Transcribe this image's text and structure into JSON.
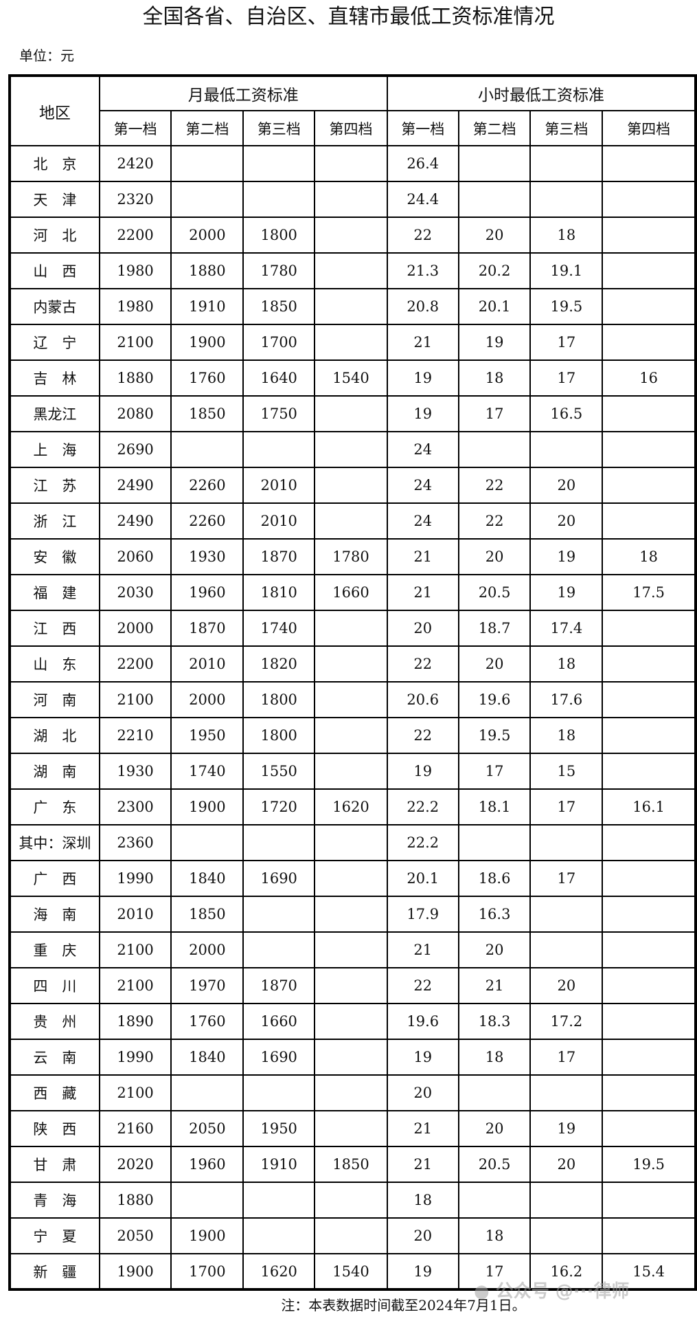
{
  "title": "全国各省、自治区、直辖市最低工资标准情况",
  "unit": "单位：元",
  "header": {
    "region": "地区",
    "monthly": "月最低工资标准",
    "hourly": "小时最低工资标准",
    "tiers": [
      "第一档",
      "第二档",
      "第三档",
      "第四档"
    ]
  },
  "rows": [
    {
      "region": "北　京",
      "monthly": [
        "2420",
        "",
        "",
        ""
      ],
      "hourly": [
        "26.4",
        "",
        "",
        ""
      ]
    },
    {
      "region": "天　津",
      "monthly": [
        "2320",
        "",
        "",
        ""
      ],
      "hourly": [
        "24.4",
        "",
        "",
        ""
      ]
    },
    {
      "region": "河　北",
      "monthly": [
        "2200",
        "2000",
        "1800",
        ""
      ],
      "hourly": [
        "22",
        "20",
        "18",
        ""
      ]
    },
    {
      "region": "山　西",
      "monthly": [
        "1980",
        "1880",
        "1780",
        ""
      ],
      "hourly": [
        "21.3",
        "20.2",
        "19.1",
        ""
      ]
    },
    {
      "region": "内蒙古",
      "monthly": [
        "1980",
        "1910",
        "1850",
        ""
      ],
      "hourly": [
        "20.8",
        "20.1",
        "19.5",
        ""
      ]
    },
    {
      "region": "辽　宁",
      "monthly": [
        "2100",
        "1900",
        "1700",
        ""
      ],
      "hourly": [
        "21",
        "19",
        "17",
        ""
      ]
    },
    {
      "region": "吉　林",
      "monthly": [
        "1880",
        "1760",
        "1640",
        "1540"
      ],
      "hourly": [
        "19",
        "18",
        "17",
        "16"
      ]
    },
    {
      "region": "黑龙江",
      "monthly": [
        "2080",
        "1850",
        "1750",
        ""
      ],
      "hourly": [
        "19",
        "17",
        "16.5",
        ""
      ]
    },
    {
      "region": "上　海",
      "monthly": [
        "2690",
        "",
        "",
        ""
      ],
      "hourly": [
        "24",
        "",
        "",
        ""
      ]
    },
    {
      "region": "江　苏",
      "monthly": [
        "2490",
        "2260",
        "2010",
        ""
      ],
      "hourly": [
        "24",
        "22",
        "20",
        ""
      ]
    },
    {
      "region": "浙　江",
      "monthly": [
        "2490",
        "2260",
        "2010",
        ""
      ],
      "hourly": [
        "24",
        "22",
        "20",
        ""
      ]
    },
    {
      "region": "安　徽",
      "monthly": [
        "2060",
        "1930",
        "1870",
        "1780"
      ],
      "hourly": [
        "21",
        "20",
        "19",
        "18"
      ]
    },
    {
      "region": "福　建",
      "monthly": [
        "2030",
        "1960",
        "1810",
        "1660"
      ],
      "hourly": [
        "21",
        "20.5",
        "19",
        "17.5"
      ]
    },
    {
      "region": "江　西",
      "monthly": [
        "2000",
        "1870",
        "1740",
        ""
      ],
      "hourly": [
        "20",
        "18.7",
        "17.4",
        ""
      ]
    },
    {
      "region": "山　东",
      "monthly": [
        "2200",
        "2010",
        "1820",
        ""
      ],
      "hourly": [
        "22",
        "20",
        "18",
        ""
      ]
    },
    {
      "region": "河　南",
      "monthly": [
        "2100",
        "2000",
        "1800",
        ""
      ],
      "hourly": [
        "20.6",
        "19.6",
        "17.6",
        ""
      ]
    },
    {
      "region": "湖　北",
      "monthly": [
        "2210",
        "1950",
        "1800",
        ""
      ],
      "hourly": [
        "22",
        "19.5",
        "18",
        ""
      ]
    },
    {
      "region": "湖　南",
      "monthly": [
        "1930",
        "1740",
        "1550",
        ""
      ],
      "hourly": [
        "19",
        "17",
        "15",
        ""
      ]
    },
    {
      "region": "广　东",
      "monthly": [
        "2300",
        "1900",
        "1720",
        "1620"
      ],
      "hourly": [
        "22.2",
        "18.1",
        "17",
        "16.1"
      ]
    },
    {
      "region": "其中：深圳",
      "monthly": [
        "2360",
        "",
        "",
        ""
      ],
      "hourly": [
        "22.2",
        "",
        "",
        ""
      ]
    },
    {
      "region": "广　西",
      "monthly": [
        "1990",
        "1840",
        "1690",
        ""
      ],
      "hourly": [
        "20.1",
        "18.6",
        "17",
        ""
      ]
    },
    {
      "region": "海　南",
      "monthly": [
        "2010",
        "1850",
        "",
        ""
      ],
      "hourly": [
        "17.9",
        "16.3",
        "",
        ""
      ]
    },
    {
      "region": "重　庆",
      "monthly": [
        "2100",
        "2000",
        "",
        ""
      ],
      "hourly": [
        "21",
        "20",
        "",
        ""
      ]
    },
    {
      "region": "四　川",
      "monthly": [
        "2100",
        "1970",
        "1870",
        ""
      ],
      "hourly": [
        "22",
        "21",
        "20",
        ""
      ]
    },
    {
      "region": "贵　州",
      "monthly": [
        "1890",
        "1760",
        "1660",
        ""
      ],
      "hourly": [
        "19.6",
        "18.3",
        "17.2",
        ""
      ]
    },
    {
      "region": "云　南",
      "monthly": [
        "1990",
        "1840",
        "1690",
        ""
      ],
      "hourly": [
        "19",
        "18",
        "17",
        ""
      ]
    },
    {
      "region": "西　藏",
      "monthly": [
        "2100",
        "",
        "",
        ""
      ],
      "hourly": [
        "20",
        "",
        "",
        ""
      ]
    },
    {
      "region": "陕　西",
      "monthly": [
        "2160",
        "2050",
        "1950",
        ""
      ],
      "hourly": [
        "21",
        "20",
        "19",
        ""
      ]
    },
    {
      "region": "甘　肃",
      "monthly": [
        "2020",
        "1960",
        "1910",
        "1850"
      ],
      "hourly": [
        "21",
        "20.5",
        "20",
        "19.5"
      ]
    },
    {
      "region": "青　海",
      "monthly": [
        "1880",
        "",
        "",
        ""
      ],
      "hourly": [
        "18",
        "",
        "",
        ""
      ]
    },
    {
      "region": "宁　夏",
      "monthly": [
        "2050",
        "1900",
        "",
        ""
      ],
      "hourly": [
        "20",
        "18",
        "",
        ""
      ]
    },
    {
      "region": "新　疆",
      "monthly": [
        "1900",
        "1700",
        "1620",
        "1540"
      ],
      "hourly": [
        "19",
        "17",
        "16.2",
        "15.4"
      ]
    }
  ],
  "note": "注：本表数据时间截至2024年7月1日。",
  "watermark": "公众号 @深豫德律师"
}
